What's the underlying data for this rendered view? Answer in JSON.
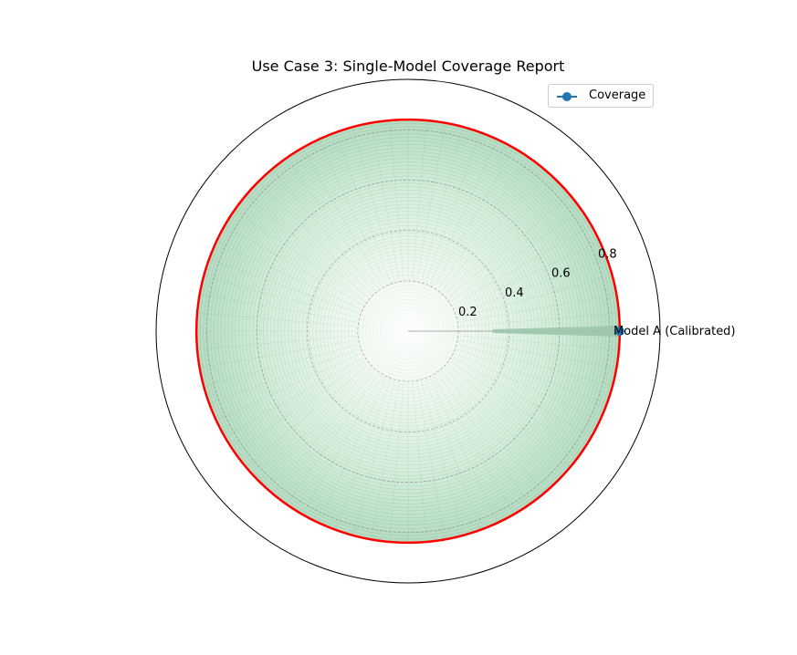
{
  "chart_data": {
    "type": "radar",
    "title": "Use Case 3: Single-Model Coverage Report",
    "categories": [
      "Model A (Calibrated)"
    ],
    "series": [
      {
        "name": "Coverage",
        "values": [
          0.84
        ],
        "color": "#1f77b4"
      }
    ],
    "rlim": [
      0,
      1
    ],
    "rticks": [
      0.2,
      0.4,
      0.6,
      0.8
    ],
    "rtick_labels": [
      "0.2",
      "0.4",
      "0.6",
      "0.8"
    ],
    "reference_circle": {
      "value": 0.84,
      "color": "#ff0000"
    },
    "fill_colormap": "greens",
    "grid": true,
    "legend_placement": "top-right"
  }
}
